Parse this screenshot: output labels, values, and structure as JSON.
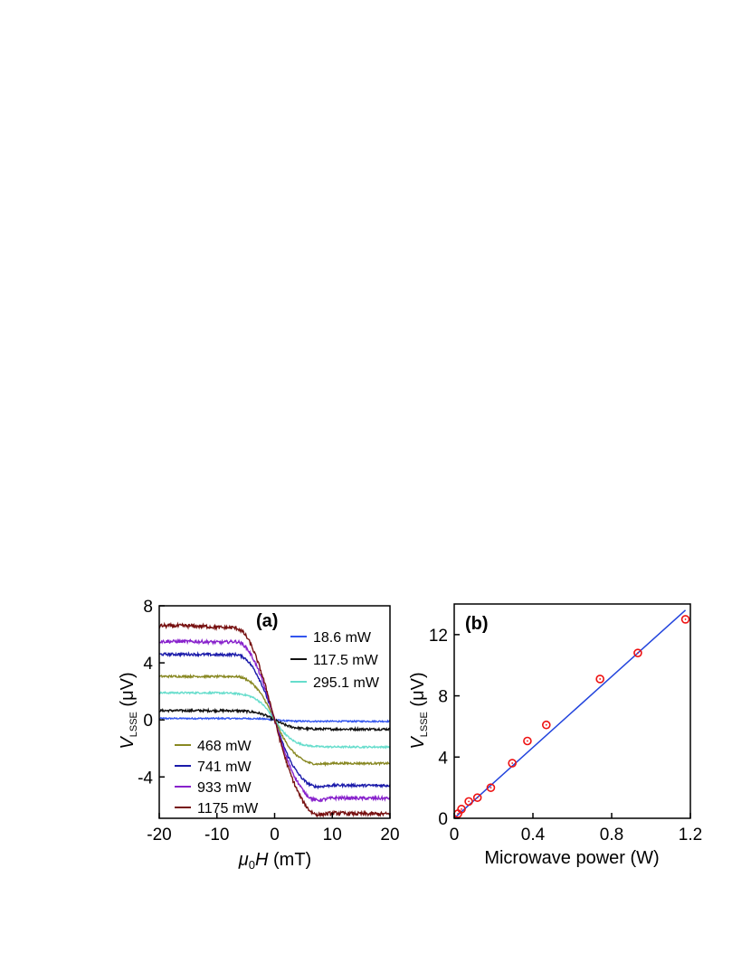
{
  "chart_data": [
    {
      "type": "line",
      "panel_label": "(a)",
      "xlabel": {
        "italic": "μ",
        "sub": "0",
        "italic2": "H",
        "rest": " (mT)"
      },
      "ylabel": {
        "italic": "V",
        "sub": "LSSE",
        "rest": " (μV)"
      },
      "xlim": [
        -20,
        20
      ],
      "ylim": [
        -6.9,
        8
      ],
      "xticks": [
        -20,
        -10,
        0,
        10,
        20
      ],
      "yticks": [
        -4,
        0,
        4,
        8
      ],
      "xtick_labels": [
        "-20",
        "-10",
        "0",
        "10",
        "20"
      ],
      "ytick_labels": [
        "-4",
        "0",
        "4",
        "8"
      ],
      "grid": false,
      "legend_placement": "right-top and left-bottom",
      "series": [
        {
          "name": "18.6 mW",
          "color": "#3355ee",
          "saturation": 0.1,
          "width": 2.5,
          "noise": 0.05,
          "bump": 0
        },
        {
          "name": "117.5 mW",
          "color": "#111111",
          "saturation": 0.65,
          "width": 3.0,
          "noise": 0.08,
          "bump": 0
        },
        {
          "name": "295.1 mW",
          "color": "#66ddcc",
          "saturation": 1.9,
          "width": 3.2,
          "noise": 0.06,
          "bump": 0
        },
        {
          "name": "468 mW",
          "color": "#888822",
          "saturation": 3.05,
          "width": 3.5,
          "noise": 0.07,
          "bump": 0.15
        },
        {
          "name": "741 mW",
          "color": "#1a1aaa",
          "saturation": 4.6,
          "width": 3.8,
          "noise": 0.09,
          "bump": 0.3
        },
        {
          "name": "933 mW",
          "color": "#8822cc",
          "saturation": 5.5,
          "width": 4.0,
          "noise": 0.11,
          "bump": 0.45
        },
        {
          "name": "1175 mW",
          "color": "#771111",
          "saturation": 6.6,
          "width": 4.3,
          "noise": 0.13,
          "bump": 0.5
        }
      ]
    },
    {
      "type": "scatter",
      "panel_label": "(b)",
      "xlabel": "Microwave power (W)",
      "ylabel": {
        "italic": "V",
        "sub": "LSSE",
        "rest": " (μV)"
      },
      "xlim": [
        0,
        1.2
      ],
      "ylim": [
        0,
        14
      ],
      "xticks": [
        0,
        0.4,
        0.8,
        1.2
      ],
      "yticks": [
        0,
        4,
        8,
        12
      ],
      "xtick_labels": [
        "0",
        "0.4",
        "0.8",
        "1.2"
      ],
      "ytick_labels": [
        "0",
        "4",
        "8",
        "12"
      ],
      "grid": false,
      "points": {
        "x": [
          0.019,
          0.037,
          0.074,
          0.118,
          0.186,
          0.295,
          0.372,
          0.468,
          0.741,
          0.933,
          1.175
        ],
        "y": [
          0.3,
          0.6,
          1.1,
          1.35,
          2.0,
          3.6,
          5.05,
          6.1,
          9.1,
          10.8,
          13.0
        ]
      },
      "fit": {
        "x": [
          0.0,
          1.175
        ],
        "y": [
          0.0,
          13.6
        ]
      },
      "point_color": "#ee1111",
      "fit_color": "#2244dd"
    }
  ]
}
